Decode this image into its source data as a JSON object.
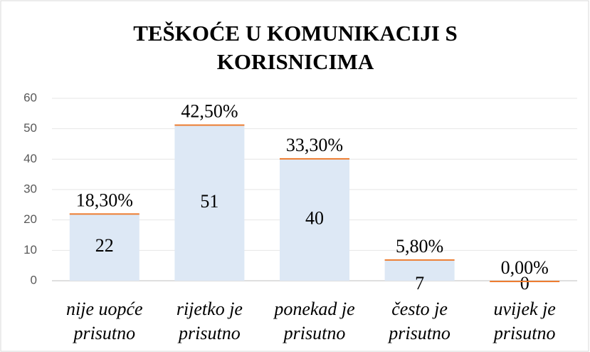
{
  "chart_data": {
    "type": "bar",
    "stacked": true,
    "title": [
      "TEŠKOĆE U KOMUNIKACIJI S",
      "KORISNICIMA"
    ],
    "categories": [
      [
        "nije uopće",
        "prisutno"
      ],
      [
        "rijetko je",
        "prisutno"
      ],
      [
        "ponekad je",
        "prisutno"
      ],
      [
        "često je",
        "prisutno"
      ],
      [
        "uvijek je",
        "prisutno"
      ]
    ],
    "series": [
      {
        "color": "#dde8f5",
        "values": [
          22,
          51,
          40,
          7,
          0
        ]
      },
      {
        "color": "#ed7d31",
        "values": [
          0.183,
          0.425,
          0.333,
          0.058,
          0
        ],
        "value_labels": [
          "18,30%",
          "42,50%",
          "33,30%",
          "5,80%",
          "0,00%"
        ]
      }
    ],
    "ylim": [
      0,
      60
    ],
    "yticks": [
      0,
      10,
      20,
      30,
      40,
      50,
      60
    ],
    "grid": true
  }
}
